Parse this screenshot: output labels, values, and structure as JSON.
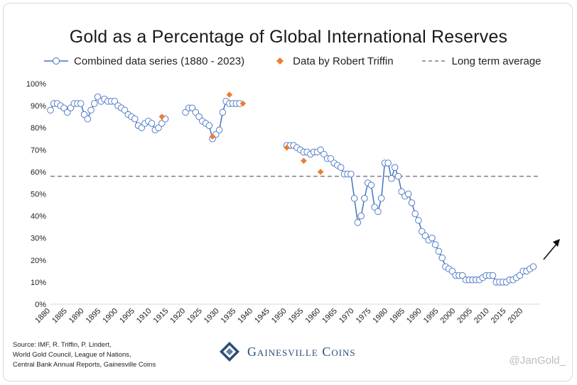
{
  "title": "Gold as a Percentage of Global International Reserves",
  "legend": {
    "combined": "Combined data series (1880 - 2023)",
    "triffin": "Data by Robert Triffin",
    "average": "Long term average"
  },
  "source_lines": [
    "Source: IMF, R. Triffin, P. Lindert,",
    "World Gold Council, League of Nations,",
    "Central Bank Annual Reports, Gainesville Coins"
  ],
  "brand": "Gainesville Coins",
  "handle": "@JanGold_",
  "colors": {
    "line": "#4472c4",
    "marker_fill": "#ffffff",
    "triffin": "#ed7d31",
    "average": "#7f7f7f",
    "brand": "#2e4d73"
  },
  "chart_data": {
    "type": "line",
    "title": "Gold as a Percentage of Global International Reserves",
    "xlim": [
      1880,
      2025
    ],
    "ylim": [
      0,
      100
    ],
    "x_ticks": [
      1880,
      1885,
      1890,
      1895,
      1900,
      1905,
      1910,
      1915,
      1920,
      1925,
      1930,
      1935,
      1940,
      1945,
      1950,
      1955,
      1960,
      1965,
      1970,
      1975,
      1980,
      1985,
      1990,
      1995,
      2000,
      2005,
      2010,
      2015,
      2020
    ],
    "y_ticks": [
      0,
      10,
      20,
      30,
      40,
      50,
      60,
      70,
      80,
      90,
      100
    ],
    "y_tick_labels": [
      "0%",
      "10%",
      "20%",
      "30%",
      "40%",
      "50%",
      "60%",
      "70%",
      "80%",
      "90%",
      "100%"
    ],
    "long_term_average": 58,
    "trend_arrow": "up",
    "series": [
      {
        "name": "Combined data series (1880 - 2023)",
        "segments": [
          [
            [
              1880,
              88
            ],
            [
              1881,
              91
            ],
            [
              1882,
              91
            ],
            [
              1883,
              90
            ],
            [
              1884,
              89
            ],
            [
              1885,
              87
            ],
            [
              1886,
              89
            ],
            [
              1887,
              91
            ],
            [
              1888,
              91
            ],
            [
              1889,
              91
            ],
            [
              1890,
              86
            ],
            [
              1891,
              84
            ],
            [
              1892,
              88
            ],
            [
              1893,
              91
            ],
            [
              1894,
              94
            ],
            [
              1895,
              92
            ],
            [
              1896,
              93
            ],
            [
              1897,
              92
            ],
            [
              1898,
              92
            ],
            [
              1899,
              92
            ],
            [
              1900,
              90
            ],
            [
              1901,
              89
            ],
            [
              1902,
              88
            ],
            [
              1903,
              86
            ],
            [
              1904,
              85
            ],
            [
              1905,
              84
            ],
            [
              1906,
              81
            ],
            [
              1907,
              80
            ],
            [
              1908,
              82
            ],
            [
              1909,
              83
            ],
            [
              1910,
              82
            ],
            [
              1911,
              79
            ],
            [
              1912,
              80
            ],
            [
              1913,
              82
            ],
            [
              1914,
              84
            ]
          ],
          [
            [
              1920,
              87
            ],
            [
              1921,
              89
            ],
            [
              1922,
              89
            ],
            [
              1923,
              87
            ],
            [
              1924,
              85
            ],
            [
              1925,
              83
            ],
            [
              1926,
              82
            ],
            [
              1927,
              81
            ],
            [
              1928,
              75
            ],
            [
              1929,
              77
            ],
            [
              1930,
              79
            ],
            [
              1931,
              87
            ],
            [
              1932,
              92
            ],
            [
              1933,
              91
            ],
            [
              1934,
              91
            ],
            [
              1935,
              91
            ],
            [
              1936,
              91
            ]
          ],
          [
            [
              1950,
              72
            ],
            [
              1951,
              72
            ],
            [
              1952,
              72
            ],
            [
              1953,
              71
            ],
            [
              1954,
              70
            ],
            [
              1955,
              69
            ],
            [
              1956,
              69
            ],
            [
              1957,
              68
            ],
            [
              1958,
              69
            ],
            [
              1959,
              69
            ],
            [
              1960,
              70
            ],
            [
              1961,
              68
            ],
            [
              1962,
              66
            ],
            [
              1963,
              66
            ],
            [
              1964,
              64
            ],
            [
              1965,
              63
            ],
            [
              1966,
              62
            ],
            [
              1967,
              59
            ],
            [
              1968,
              59
            ],
            [
              1969,
              59
            ],
            [
              1970,
              48
            ],
            [
              1971,
              37
            ],
            [
              1972,
              40
            ],
            [
              1973,
              48
            ],
            [
              1974,
              55
            ],
            [
              1975,
              54
            ],
            [
              1976,
              44
            ],
            [
              1977,
              42
            ],
            [
              1978,
              48
            ],
            [
              1979,
              64
            ],
            [
              1980,
              64
            ],
            [
              1981,
              57
            ],
            [
              1982,
              62
            ],
            [
              1983,
              58
            ],
            [
              1984,
              51
            ],
            [
              1985,
              49
            ],
            [
              1986,
              50
            ],
            [
              1987,
              46
            ],
            [
              1988,
              41
            ],
            [
              1989,
              38
            ],
            [
              1990,
              33
            ],
            [
              1991,
              31
            ],
            [
              1992,
              29
            ],
            [
              1993,
              30
            ],
            [
              1994,
              27
            ],
            [
              1995,
              24
            ],
            [
              1996,
              21
            ],
            [
              1997,
              17
            ],
            [
              1998,
              16
            ],
            [
              1999,
              15
            ],
            [
              2000,
              13
            ],
            [
              2001,
              13
            ],
            [
              2002,
              13
            ],
            [
              2003,
              11
            ],
            [
              2004,
              11
            ],
            [
              2005,
              11
            ],
            [
              2006,
              11
            ],
            [
              2007,
              11
            ],
            [
              2008,
              12
            ],
            [
              2009,
              13
            ],
            [
              2010,
              13
            ],
            [
              2011,
              13
            ],
            [
              2012,
              10
            ],
            [
              2013,
              10
            ],
            [
              2014,
              10
            ],
            [
              2015,
              10
            ],
            [
              2016,
              11
            ],
            [
              2017,
              11
            ],
            [
              2018,
              12
            ],
            [
              2019,
              13
            ],
            [
              2020,
              15
            ],
            [
              2021,
              15
            ],
            [
              2022,
              16
            ],
            [
              2023,
              17
            ]
          ]
        ]
      },
      {
        "name": "Data by Robert Triffin",
        "points": [
          [
            1913,
            85
          ],
          [
            1928,
            76
          ],
          [
            1933,
            95
          ],
          [
            1937,
            91
          ],
          [
            1950,
            71
          ],
          [
            1955,
            65
          ],
          [
            1960,
            60
          ]
        ]
      }
    ]
  }
}
